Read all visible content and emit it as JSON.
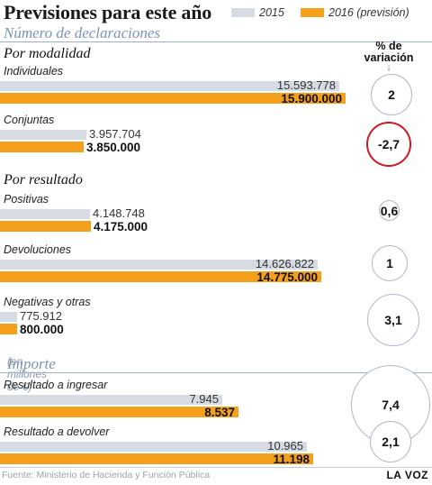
{
  "title": "Previsiones para este año",
  "legend": {
    "y2015": "2015",
    "y2016": "2016 (previsión)",
    "color2015": "#d6dbe4",
    "color2016": "#f4a01c"
  },
  "sections": {
    "declaraciones": "Número de declaraciones",
    "importe": "Importe",
    "importe_unit": "(en millones de €)"
  },
  "groups": {
    "modalidad": "Por modalidad",
    "resultado": "Por resultado"
  },
  "variation_header": "% de variación",
  "chart_data": [
    {
      "type": "bar",
      "title": "Número de declaraciones",
      "series": [
        {
          "name": "2015",
          "values": [
            15593778,
            3957704,
            4148748,
            14626822,
            775912
          ]
        },
        {
          "name": "2016 (previsión)",
          "values": [
            15900000,
            3850000,
            4175000,
            14775000,
            800000
          ]
        }
      ],
      "categories": [
        "Individuales",
        "Conjuntas",
        "Positivas",
        "Devoluciones",
        "Negativas y otras"
      ],
      "labels_2015": [
        "15.593.778",
        "3.957.704",
        "4.148.748",
        "14.626.822",
        "775.912"
      ],
      "labels_2016": [
        "15.900.000",
        "3.850.000",
        "4.175.000",
        "14.775.000",
        "800.000"
      ],
      "variation": [
        "2",
        "-2,7",
        "0,6",
        "1",
        "3,1"
      ],
      "variation_values": [
        2,
        -2.7,
        0.6,
        1,
        3.1
      ]
    },
    {
      "type": "bar",
      "title": "Importe",
      "series": [
        {
          "name": "2015",
          "values": [
            7945,
            10965
          ]
        },
        {
          "name": "2016 (previsión)",
          "values": [
            8537,
            11198
          ]
        }
      ],
      "categories": [
        "Resultado a ingresar",
        "Resultado a devolver"
      ],
      "labels_2015": [
        "7.945",
        "10.965"
      ],
      "labels_2016": [
        "8.537",
        "11.198"
      ],
      "variation": [
        "7,4",
        "2,1"
      ],
      "variation_values": [
        7.4,
        2.1
      ]
    }
  ],
  "source": "Fuente: Ministerio de Hacienda y Función Pública",
  "credit": "LA VOZ"
}
